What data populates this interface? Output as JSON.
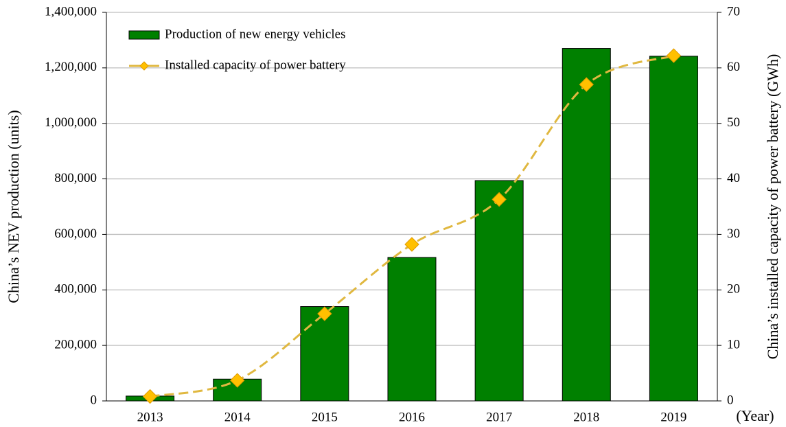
{
  "chart_data": {
    "type": "bar",
    "ylabel": "China’s NEV production (units)",
    "y2label": "China’s installed capacity of power battery (GWh)",
    "xlabel": "(Year)",
    "categories": [
      "2013",
      "2014",
      "2015",
      "2016",
      "2017",
      "2018",
      "2019"
    ],
    "series": [
      {
        "name": "Production of new energy vehicles",
        "type": "bar",
        "color": "#008000",
        "values": [
          17500,
          78500,
          340000,
          517000,
          794000,
          1270000,
          1242000
        ]
      },
      {
        "name": "Installed capacity of power battery",
        "type": "line",
        "axis": "y2",
        "color": "#e0b840",
        "marker_color": "#ffc000",
        "values": [
          0.8,
          3.7,
          15.7,
          28.2,
          36.3,
          57,
          62.2
        ]
      }
    ],
    "ylim": [
      0,
      1400000
    ],
    "yticks": [
      0,
      {
        "value": 200000,
        "label": "200,000"
      },
      {
        "value": 400000,
        "label": "400,000"
      },
      {
        "value": 600000,
        "label": "600,000"
      },
      {
        "value": 800000,
        "label": "800,000"
      },
      {
        "value": 1000000,
        "label": "1,000,000"
      },
      {
        "value": 1200000,
        "label": "1,200,000"
      },
      {
        "value": 1400000,
        "label": "1,400,000"
      }
    ],
    "y2lim": [
      0,
      70
    ],
    "y2ticks": [
      0,
      10,
      20,
      30,
      40,
      50,
      60,
      70
    ],
    "grid": true,
    "legend": "upper left"
  }
}
